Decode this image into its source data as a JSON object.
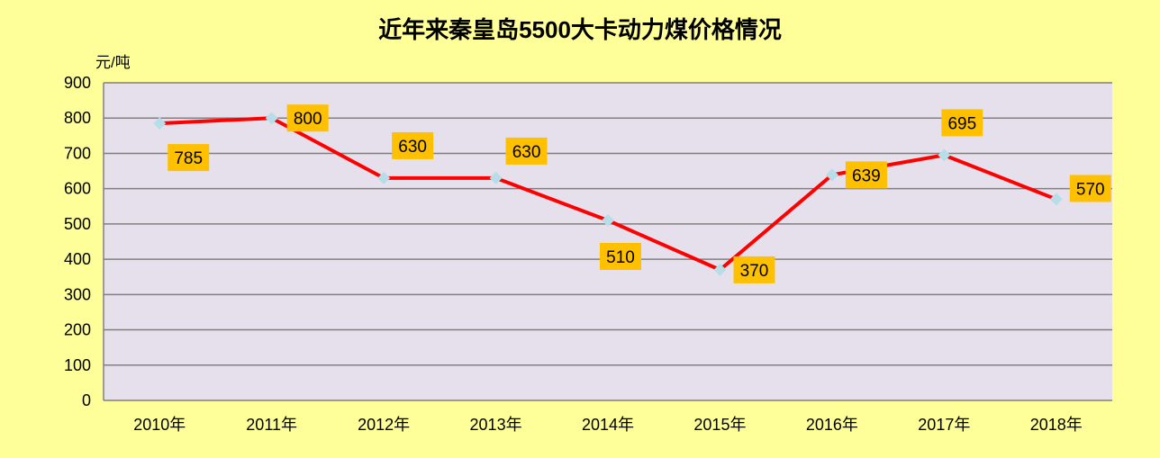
{
  "chart_data": {
    "type": "line",
    "title": "近年来秦皇岛5500大卡动力煤价格情况",
    "ylabel": "元/吨",
    "xlabel": "",
    "categories": [
      "2010年",
      "2011年",
      "2012年",
      "2013年",
      "2014年",
      "2015年",
      "2016年",
      "2017年",
      "2018年"
    ],
    "series": [
      {
        "values": [
          785,
          800,
          630,
          630,
          510,
          370,
          639,
          695,
          570
        ]
      }
    ],
    "data_labels": [
      "785",
      "800",
      "630",
      "630",
      "510",
      "370",
      "639",
      "695",
      "570"
    ],
    "ylim": [
      0,
      900
    ],
    "yticks": [
      "0",
      "100",
      "200",
      "300",
      "400",
      "500",
      "600",
      "700",
      "800",
      "900"
    ],
    "grid": true,
    "legend": "none",
    "colors": {
      "background": "#ffff99",
      "plot_area": "#e6e0ec",
      "line": "#ff0000",
      "marker": "#b7dde8",
      "label_box": "#ffc000",
      "grid": "#808080"
    }
  }
}
